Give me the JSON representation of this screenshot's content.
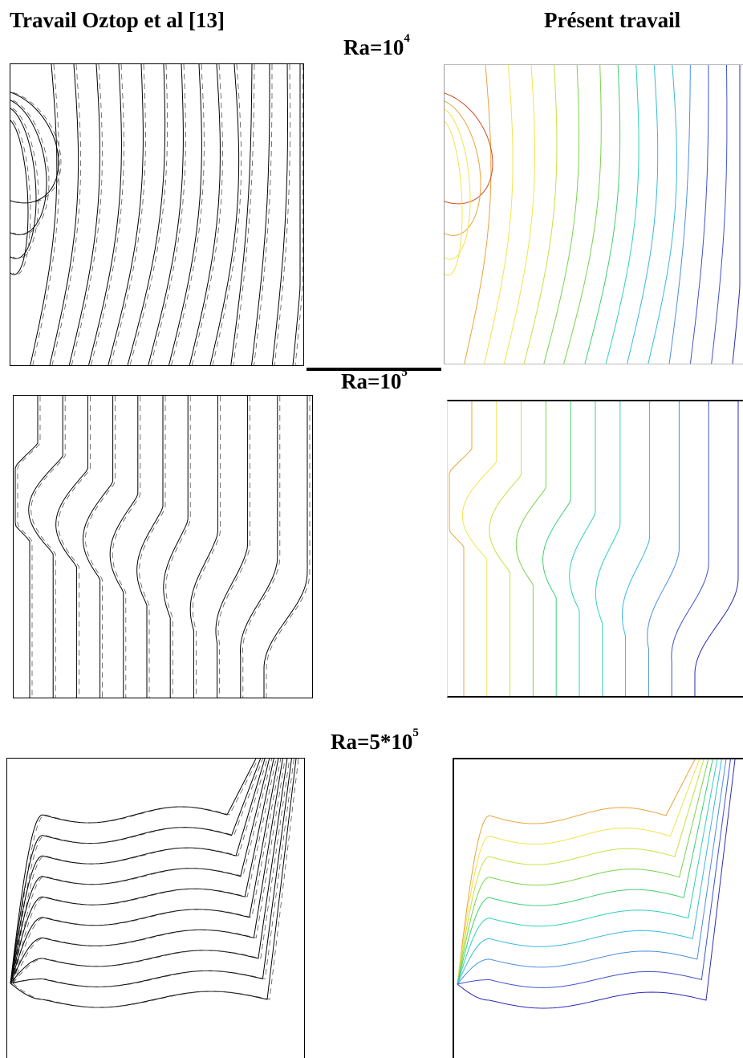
{
  "headers": {
    "left": "Travail Oztop et al [13]",
    "right": "Présent travail"
  },
  "cases": [
    {
      "label_base": "Ra=10",
      "label_exp": "4"
    },
    {
      "label_base": "Ra=10",
      "label_exp": "5"
    },
    {
      "label_base": "Ra=5*10",
      "label_exp": "5"
    }
  ],
  "colors": {
    "reference_lines": "#000000",
    "present_palette": [
      "#d24a1e",
      "#e8a43a",
      "#f4e24a",
      "#c8e040",
      "#79d44c",
      "#3fcf70",
      "#2fd0b8",
      "#38b8e0",
      "#4a8fe0",
      "#3f52d0",
      "#2a2ab8"
    ]
  }
}
